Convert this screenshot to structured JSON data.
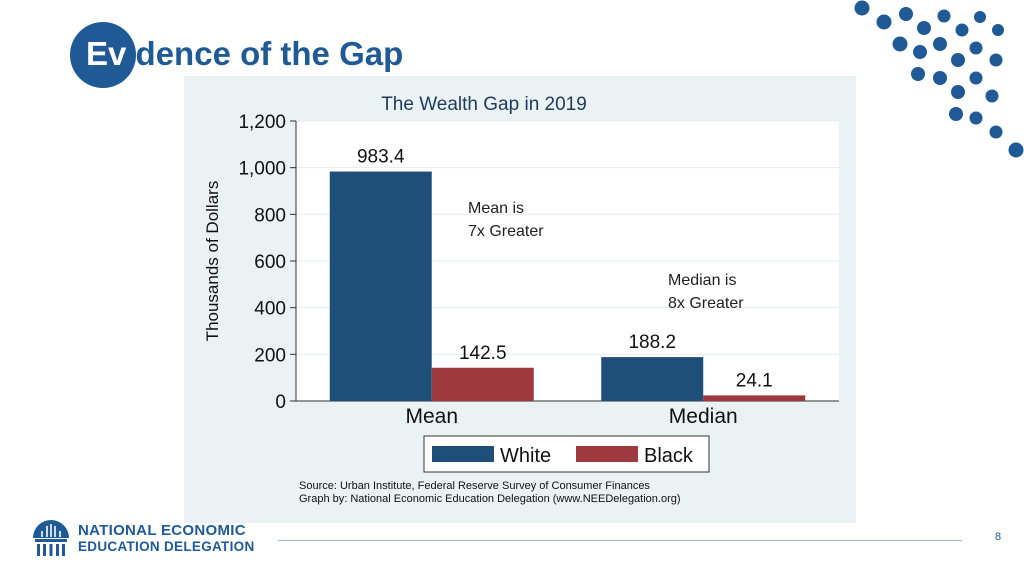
{
  "slide": {
    "title_prefix": "Ev",
    "title_rest": "idence of the Gap",
    "page_number": "8"
  },
  "branding": {
    "org_line1": "NATIONAL ECONOMIC",
    "org_line2": "EDUCATION DELEGATION",
    "primary_color": "#1f5a96"
  },
  "chart_data": {
    "type": "bar",
    "title": "The Wealth Gap in 2019",
    "xlabel": "",
    "ylabel": "Thousands of Dollars",
    "ylim": [
      0,
      1200
    ],
    "yticks": [
      0,
      200,
      400,
      600,
      800,
      1000,
      1200
    ],
    "ytick_labels": [
      "0",
      "200",
      "400",
      "600",
      "800",
      "1,000",
      "1,200"
    ],
    "categories": [
      "Mean",
      "Median"
    ],
    "series": [
      {
        "name": "White",
        "values": [
          983.4,
          188.2
        ],
        "labels": [
          "983.4",
          "188.2"
        ],
        "color": "#1f4e79"
      },
      {
        "name": "Black",
        "values": [
          142.5,
          24.1
        ],
        "labels": [
          "142.5",
          "24.1"
        ],
        "color": "#9e3a3f"
      }
    ],
    "annotations": [
      {
        "lines": [
          "Mean is",
          "7x Greater"
        ]
      },
      {
        "lines": [
          "Median is",
          "8x Greater"
        ]
      }
    ],
    "legend_position": "bottom",
    "source_lines": [
      "Source: Urban Institute, Federal Reserve Survey of Consumer Finances",
      "Graph by: National Economic Education Delegation (www.NEEDelegation.org)"
    ],
    "grid": true,
    "background": "#eaf2f3"
  }
}
